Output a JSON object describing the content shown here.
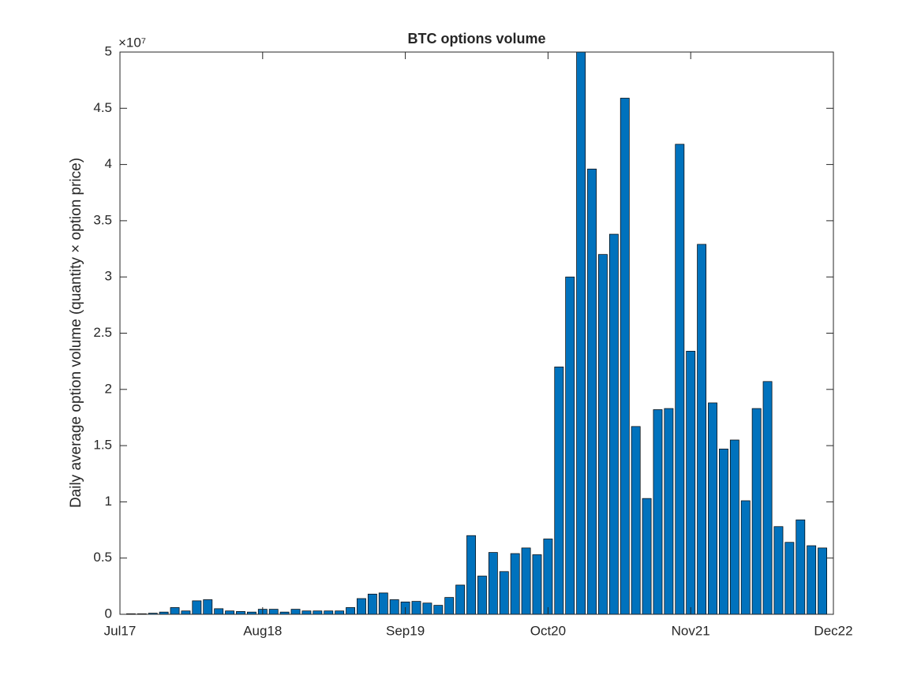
{
  "chart_data": {
    "type": "bar",
    "title": "BTC options volume",
    "y_label": "Daily average option volume (quantity × option price)",
    "y_exponent": "×10⁷",
    "color": "#0072bd",
    "edge_color": "#000000",
    "x": [
      1,
      2,
      3,
      4,
      5,
      6,
      7,
      8,
      9,
      10,
      11,
      12,
      13,
      14,
      15,
      16,
      17,
      18,
      19,
      20,
      21,
      22,
      23,
      24,
      25,
      26,
      27,
      28,
      29,
      30,
      31,
      32,
      33,
      34,
      35,
      36,
      37,
      38,
      39,
      40,
      41,
      42,
      43,
      44,
      45,
      46,
      47,
      48,
      49,
      50,
      51,
      52,
      53,
      54,
      55,
      56,
      57,
      58,
      59,
      60,
      61,
      62,
      63,
      64
    ],
    "values": [
      0.005,
      0.005,
      0.01,
      0.02,
      0.06,
      0.03,
      0.12,
      0.13,
      0.05,
      0.03,
      0.025,
      0.02,
      0.045,
      0.045,
      0.02,
      0.045,
      0.03,
      0.03,
      0.03,
      0.03,
      0.06,
      0.14,
      0.18,
      0.19,
      0.13,
      0.11,
      0.115,
      0.1,
      0.08,
      0.15,
      0.26,
      0.7,
      0.34,
      0.55,
      0.38,
      0.54,
      0.59,
      0.53,
      0.67,
      2.2,
      3.0,
      5.0,
      3.96,
      3.2,
      3.38,
      4.59,
      1.67,
      1.03,
      1.82,
      1.83,
      4.18,
      2.34,
      3.29,
      1.88,
      1.47,
      1.55,
      1.01,
      1.83,
      2.07,
      0.78,
      0.64,
      0.84,
      0.61,
      0.59
    ],
    "xlim": [
      0,
      65
    ],
    "xticks": [
      {
        "value": 0,
        "label": "Jul17"
      },
      {
        "value": 13,
        "label": "Aug18"
      },
      {
        "value": 26,
        "label": "Sep19"
      },
      {
        "value": 39,
        "label": "Oct20"
      },
      {
        "value": 52,
        "label": "Nov21"
      },
      {
        "value": 65,
        "label": "Dec22"
      }
    ],
    "ylim": [
      0,
      5
    ],
    "yticks": [
      0,
      0.5,
      1,
      1.5,
      2,
      2.5,
      3,
      3.5,
      4,
      4.5,
      5
    ],
    "grid": false
  }
}
